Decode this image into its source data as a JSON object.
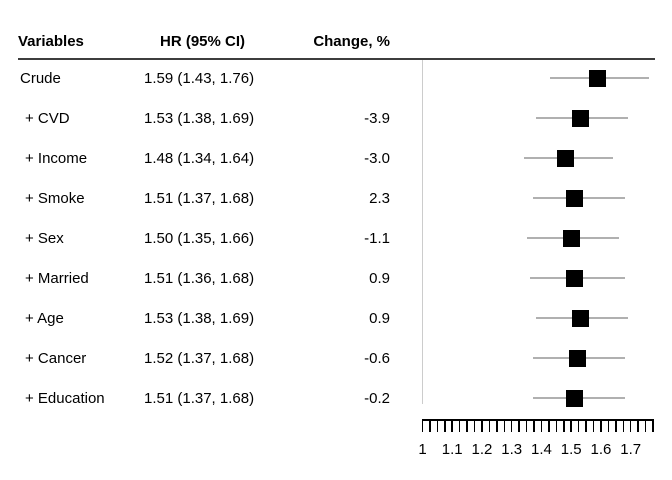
{
  "table": {
    "headers": [
      "Variables",
      "HR (95% CI)",
      "Change, %"
    ],
    "rows": [
      {
        "variable": "Crude",
        "hr_ci": "1.59 (1.43, 1.76)",
        "change": ""
      },
      {
        "variable": "+ CVD",
        "hr_ci": "1.53 (1.38, 1.69)",
        "change": "-3.9"
      },
      {
        "variable": "+ Income",
        "hr_ci": "1.48 (1.34, 1.64)",
        "change": "-3.0"
      },
      {
        "variable": "+ Smoke",
        "hr_ci": "1.51 (1.37, 1.68)",
        "change": "2.3"
      },
      {
        "variable": "+ Sex",
        "hr_ci": "1.50 (1.35, 1.66)",
        "change": "-1.1"
      },
      {
        "variable": "+ Married",
        "hr_ci": "1.51 (1.36, 1.68)",
        "change": "0.9"
      },
      {
        "variable": "+ Age",
        "hr_ci": "1.53 (1.38, 1.69)",
        "change": "0.9"
      },
      {
        "variable": "+ Cancer",
        "hr_ci": "1.52 (1.37, 1.68)",
        "change": "-0.6"
      },
      {
        "variable": "+ Education",
        "hr_ci": "1.51 (1.37, 1.68)",
        "change": "-0.2"
      }
    ]
  },
  "chart_data": {
    "type": "scatter",
    "subtype": "forest-plot",
    "orientation": "horizontal",
    "marker": "square",
    "grid": false,
    "categories": [
      "Crude",
      "+ CVD",
      "+ Income",
      "+ Smoke",
      "+ Sex",
      "+ Married",
      "+ Age",
      "+ Cancer",
      "+ Education"
    ],
    "series": [
      {
        "name": "HR",
        "values": [
          1.59,
          1.53,
          1.48,
          1.51,
          1.5,
          1.51,
          1.53,
          1.52,
          1.51
        ]
      },
      {
        "name": "CI lower",
        "values": [
          1.43,
          1.38,
          1.34,
          1.37,
          1.35,
          1.36,
          1.38,
          1.37,
          1.37
        ]
      },
      {
        "name": "CI upper",
        "values": [
          1.76,
          1.69,
          1.64,
          1.68,
          1.66,
          1.68,
          1.69,
          1.68,
          1.68
        ]
      }
    ],
    "xlabel": "",
    "x_tick_labels": [
      "1",
      "1.1",
      "1.2",
      "1.3",
      "1.4",
      "1.5",
      "1.6",
      "1.7"
    ],
    "xlim": [
      1.0,
      1.775
    ],
    "minor_tick_step": 0.025,
    "reference_value": 1.0
  },
  "colors": {
    "marker": "#000000",
    "ci_line": "#b0b0b0",
    "reference_line": "#cccccc",
    "axis": "#000000",
    "header_rule": "#3d3d3d",
    "text": "#000000"
  }
}
